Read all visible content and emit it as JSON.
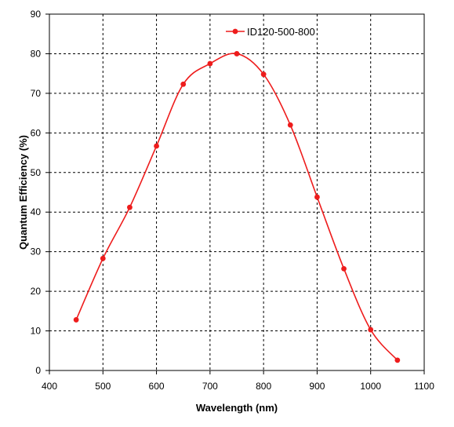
{
  "chart_data": {
    "type": "line",
    "title": "",
    "xlabel": "Wavelength (nm)",
    "ylabel": "Quantum Efficiency (%)",
    "xlim": [
      400,
      1100
    ],
    "ylim": [
      0,
      90
    ],
    "xticks": [
      400,
      500,
      600,
      700,
      800,
      900,
      1000,
      1100
    ],
    "yticks": [
      0,
      10,
      20,
      30,
      40,
      50,
      60,
      70,
      80,
      90
    ],
    "grid": true,
    "smooth": true,
    "legend_position": "top",
    "series": [
      {
        "name": "ID120-500-800",
        "color": "#ee1c1c",
        "x": [
          450,
          500,
          550,
          600,
          650,
          700,
          750,
          800,
          850,
          900,
          950,
          1000,
          1050
        ],
        "y": [
          12.8,
          28.3,
          41.2,
          56.7,
          72.3,
          77.5,
          80.0,
          74.8,
          62.0,
          43.8,
          25.7,
          10.3,
          2.6
        ]
      }
    ]
  }
}
